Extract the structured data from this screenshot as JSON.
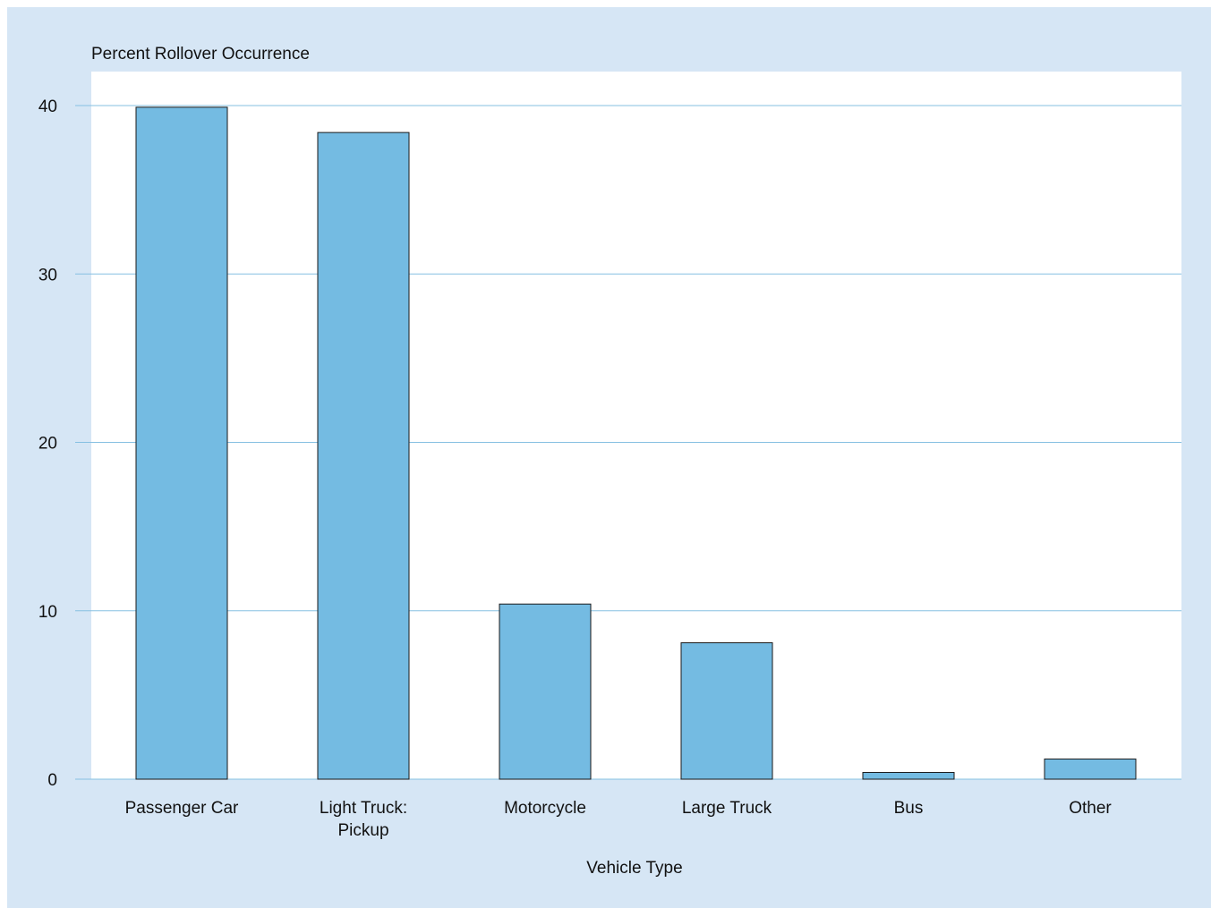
{
  "chart_data": {
    "type": "bar",
    "title": "",
    "ylabel": "Percent Rollover Occurrence",
    "xlabel": "Vehicle Type",
    "categories": [
      [
        "Passenger Car"
      ],
      [
        "Light Truck:",
        "Pickup"
      ],
      [
        "Motorcycle"
      ],
      [
        "Large Truck"
      ],
      [
        "Bus"
      ],
      [
        "Other"
      ]
    ],
    "values": [
      39.9,
      38.4,
      10.4,
      8.1,
      0.4,
      1.2
    ],
    "ylim": [
      0,
      40
    ],
    "yticks": [
      0,
      10,
      20,
      30,
      40
    ],
    "grid": true,
    "colors": {
      "background": "#d6e6f5",
      "plot_area": "#ffffff",
      "bar_fill": "#74bbe2",
      "bar_stroke": "#1a1a1a",
      "gridline": "#86c0e2"
    }
  }
}
